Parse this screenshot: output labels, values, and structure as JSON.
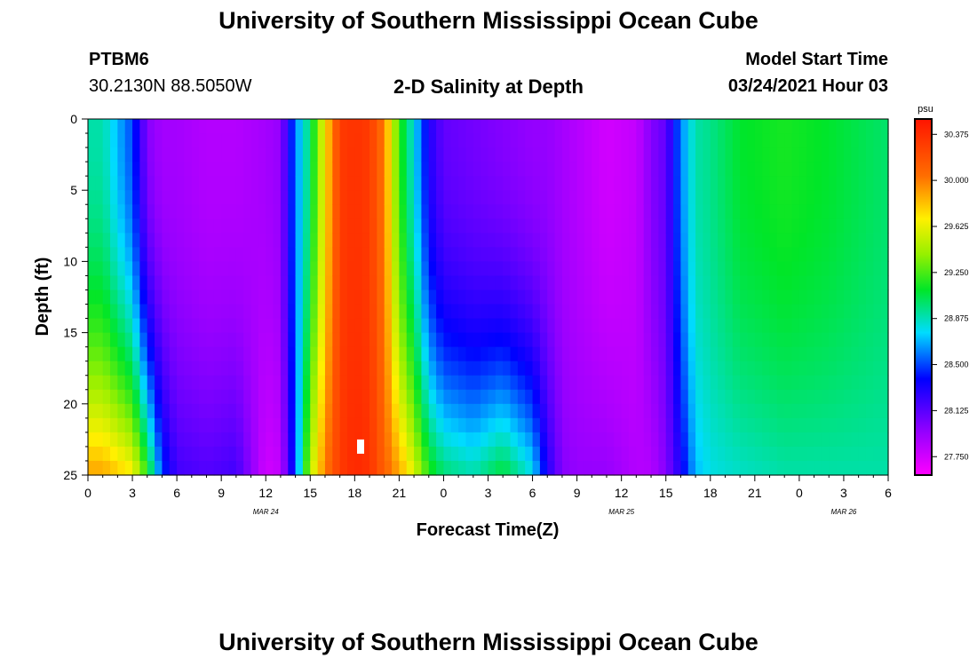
{
  "page": {
    "title_top": "University of Southern Mississippi Ocean Cube",
    "title_bottom": "University of Southern Mississippi Ocean Cube",
    "station": "PTBM6",
    "coords": "30.2130N 88.5050W",
    "plot_title": "2-D Salinity at Depth",
    "model_label": "Model Start Time",
    "model_time": "03/24/2021 Hour 03"
  },
  "chart_data": {
    "type": "heatmap",
    "title": "2-D Salinity at Depth",
    "xlabel": "Forecast Time(Z)",
    "ylabel": "Depth (ft)",
    "x_hours_range": [
      0,
      54
    ],
    "y_depth_range": [
      0,
      25
    ],
    "x_ticks": [
      "0",
      "3",
      "6",
      "9",
      "12",
      "15",
      "18",
      "21",
      "0",
      "3",
      "6",
      "9",
      "12",
      "15",
      "18",
      "21",
      "0",
      "3",
      "6"
    ],
    "y_ticks": [
      "0",
      "5",
      "10",
      "15",
      "20",
      "25"
    ],
    "date_labels": [
      {
        "text": "MAR 24",
        "hour": 12
      },
      {
        "text": "MAR 25",
        "hour": 36
      },
      {
        "text": "MAR 26",
        "hour": 51
      }
    ],
    "colorbar": {
      "unit": "psu",
      "min": 27.6,
      "max": 30.5,
      "ticks": [
        "30.375",
        "30.000",
        "29.625",
        "29.250",
        "28.875",
        "28.500",
        "28.125",
        "27.750"
      ]
    },
    "grid_columns": [
      {
        "hour": 0,
        "surface": 28.9,
        "bottom": 29.9
      },
      {
        "hour": 1,
        "surface": 28.9,
        "bottom": 29.9
      },
      {
        "hour": 2,
        "surface": 28.7,
        "bottom": 29.8
      },
      {
        "hour": 3,
        "surface": 28.5,
        "bottom": 29.7
      },
      {
        "hour": 4,
        "surface": 28.0,
        "bottom": 29.2
      },
      {
        "hour": 5,
        "surface": 27.9,
        "bottom": 28.5
      },
      {
        "hour": 6,
        "surface": 27.9,
        "bottom": 28.2
      },
      {
        "hour": 8,
        "surface": 27.85,
        "bottom": 28.15
      },
      {
        "hour": 10,
        "surface": 27.85,
        "bottom": 28.2
      },
      {
        "hour": 12,
        "surface": 27.9,
        "bottom": 27.75
      },
      {
        "hour": 13,
        "surface": 27.95,
        "bottom": 27.8
      },
      {
        "hour": 14,
        "surface": 28.6,
        "bottom": 28.5
      },
      {
        "hour": 15,
        "surface": 29.0,
        "bottom": 29.5
      },
      {
        "hour": 16,
        "surface": 29.7,
        "bottom": 30.0
      },
      {
        "hour": 17,
        "surface": 30.3,
        "bottom": 30.3
      },
      {
        "hour": 18,
        "surface": 30.35,
        "bottom": 30.4
      },
      {
        "hour": 19,
        "surface": 30.3,
        "bottom": 30.35
      },
      {
        "hour": 20,
        "surface": 30.0,
        "bottom": 30.1
      },
      {
        "hour": 21,
        "surface": 29.2,
        "bottom": 29.9
      },
      {
        "hour": 22,
        "surface": 28.8,
        "bottom": 29.6
      },
      {
        "hour": 23,
        "surface": 28.3,
        "bottom": 29.2
      },
      {
        "hour": 24,
        "surface": 28.1,
        "bottom": 29.0
      },
      {
        "hour": 26,
        "surface": 28.05,
        "bottom": 28.9
      },
      {
        "hour": 28,
        "surface": 28.0,
        "bottom": 29.1
      },
      {
        "hour": 30,
        "surface": 27.95,
        "bottom": 28.8
      },
      {
        "hour": 31,
        "surface": 27.95,
        "bottom": 28.3
      },
      {
        "hour": 32,
        "surface": 27.9,
        "bottom": 28.0
      },
      {
        "hour": 33,
        "surface": 27.85,
        "bottom": 27.95
      },
      {
        "hour": 35,
        "surface": 27.75,
        "bottom": 27.95
      },
      {
        "hour": 37,
        "surface": 27.8,
        "bottom": 27.85
      },
      {
        "hour": 38,
        "surface": 28.0,
        "bottom": 27.85
      },
      {
        "hour": 39,
        "surface": 28.1,
        "bottom": 28.0
      },
      {
        "hour": 40,
        "surface": 28.6,
        "bottom": 28.3
      },
      {
        "hour": 41,
        "surface": 28.9,
        "bottom": 28.7
      },
      {
        "hour": 42,
        "surface": 28.95,
        "bottom": 28.8
      },
      {
        "hour": 44,
        "surface": 29.1,
        "bottom": 28.85
      },
      {
        "hour": 47,
        "surface": 29.15,
        "bottom": 28.9
      },
      {
        "hour": 50,
        "surface": 29.1,
        "bottom": 28.9
      },
      {
        "hour": 54,
        "surface": 29.0,
        "bottom": 28.9
      }
    ],
    "white_marker": {
      "hour": 18.4,
      "depth_from": 22.5,
      "depth_to": 23.5
    }
  }
}
